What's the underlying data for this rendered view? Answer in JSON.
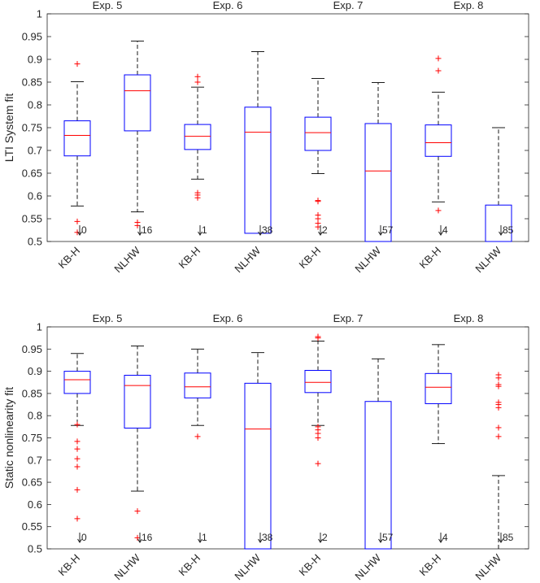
{
  "chart_data": [
    {
      "type": "box",
      "ylabel": "LTI System fit",
      "ylim": [
        0.5,
        1
      ],
      "yticks": [
        "0.5",
        "0.55",
        "0.6",
        "0.65",
        "0.7",
        "0.75",
        "0.8",
        "0.85",
        "0.9",
        "0.95",
        "1"
      ],
      "groups": [
        "Exp. 5",
        "Exp. 6",
        "Exp. 7",
        "Exp. 8"
      ],
      "categories": [
        "KB-H",
        "NLHW",
        "KB-H",
        "NLHW",
        "KB-H",
        "NLHW",
        "KB-H",
        "NLHW"
      ],
      "boxes": [
        {
          "label": "KB-H",
          "whisker_low": 0.578,
          "q1": 0.688,
          "median": 0.733,
          "q3": 0.765,
          "whisker_high": 0.851,
          "outliers": [
            0.89,
            0.544,
            0.52
          ],
          "below_count": "0"
        },
        {
          "label": "NLHW",
          "whisker_low": 0.565,
          "q1": 0.743,
          "median": 0.831,
          "q3": 0.866,
          "whisker_high": 0.94,
          "outliers": [
            0.542,
            0.535
          ],
          "below_count": "16"
        },
        {
          "label": "KB-H",
          "whisker_low": 0.637,
          "q1": 0.702,
          "median": 0.731,
          "q3": 0.757,
          "whisker_high": 0.839,
          "outliers": [
            0.862,
            0.85,
            0.607,
            0.602,
            0.596
          ],
          "below_count": "1"
        },
        {
          "label": "NLHW",
          "whisker_low": 0.518,
          "q1": 0.518,
          "median": 0.74,
          "q3": 0.795,
          "whisker_high": 0.917,
          "outliers": [],
          "below_count": "38"
        },
        {
          "label": "KB-H",
          "whisker_low": 0.649,
          "q1": 0.7,
          "median": 0.739,
          "q3": 0.773,
          "whisker_high": 0.858,
          "outliers": [
            0.59,
            0.588,
            0.558,
            0.55,
            0.54,
            0.532
          ],
          "below_count": "2"
        },
        {
          "label": "NLHW",
          "whisker_low": 0.5,
          "q1": 0.5,
          "median": 0.655,
          "q3": 0.759,
          "whisker_high": 0.849,
          "outliers": [],
          "below_count": "57"
        },
        {
          "label": "KB-H",
          "whisker_low": 0.587,
          "q1": 0.687,
          "median": 0.717,
          "q3": 0.756,
          "whisker_high": 0.828,
          "outliers": [
            0.902,
            0.875,
            0.568
          ],
          "below_count": "4"
        },
        {
          "label": "NLHW",
          "whisker_low": 0.5,
          "q1": 0.5,
          "median": 0.5,
          "q3": 0.58,
          "whisker_high": 0.75,
          "outliers": [],
          "below_count": "85"
        }
      ]
    },
    {
      "type": "box",
      "ylabel": "Static nonlinearity fit",
      "ylim": [
        0.5,
        1
      ],
      "yticks": [
        "0.5",
        "0.55",
        "0.6",
        "0.65",
        "0.7",
        "0.75",
        "0.8",
        "0.85",
        "0.9",
        "0.95",
        "1"
      ],
      "groups": [
        "Exp. 5",
        "Exp. 6",
        "Exp. 7",
        "Exp. 8"
      ],
      "categories": [
        "KB-H",
        "NLHW",
        "KB-H",
        "NLHW",
        "KB-H",
        "NLHW",
        "KB-H",
        "NLHW"
      ],
      "boxes": [
        {
          "label": "KB-H",
          "whisker_low": 0.778,
          "q1": 0.85,
          "median": 0.881,
          "q3": 0.9,
          "whisker_high": 0.94,
          "outliers": [
            0.78,
            0.742,
            0.725,
            0.703,
            0.685,
            0.633,
            0.568
          ],
          "below_count": "0"
        },
        {
          "label": "NLHW",
          "whisker_low": 0.63,
          "q1": 0.772,
          "median": 0.868,
          "q3": 0.891,
          "whisker_high": 0.957,
          "outliers": [
            0.585,
            0.525
          ],
          "below_count": "16"
        },
        {
          "label": "KB-H",
          "whisker_low": 0.778,
          "q1": 0.84,
          "median": 0.865,
          "q3": 0.896,
          "whisker_high": 0.95,
          "outliers": [
            0.753
          ],
          "below_count": "1"
        },
        {
          "label": "NLHW",
          "whisker_low": 0.5,
          "q1": 0.5,
          "median": 0.77,
          "q3": 0.873,
          "whisker_high": 0.942,
          "outliers": [],
          "below_count": "38"
        },
        {
          "label": "KB-H",
          "whisker_low": 0.778,
          "q1": 0.852,
          "median": 0.875,
          "q3": 0.902,
          "whisker_high": 0.968,
          "outliers": [
            0.978,
            0.975,
            0.775,
            0.768,
            0.76,
            0.75,
            0.692
          ],
          "below_count": "2"
        },
        {
          "label": "NLHW",
          "whisker_low": 0.5,
          "q1": 0.5,
          "median": 0.5,
          "q3": 0.832,
          "whisker_high": 0.928,
          "outliers": [],
          "below_count": "57"
        },
        {
          "label": "KB-H",
          "whisker_low": 0.737,
          "q1": 0.827,
          "median": 0.864,
          "q3": 0.895,
          "whisker_high": 0.96,
          "outliers": [],
          "below_count": "4"
        },
        {
          "label": "NLHW",
          "whisker_low": 0.5,
          "q1": 0.5,
          "median": 0.5,
          "q3": 0.5,
          "whisker_high": 0.665,
          "outliers": [
            0.892,
            0.885,
            0.87,
            0.866,
            0.83,
            0.825,
            0.818,
            0.773,
            0.753
          ],
          "below_count": "85"
        }
      ]
    }
  ],
  "colors": {
    "box": "#0000ff",
    "median": "#ff0000",
    "outlier": "#ff0000",
    "whisker": "#000000",
    "axis": "#262626"
  }
}
